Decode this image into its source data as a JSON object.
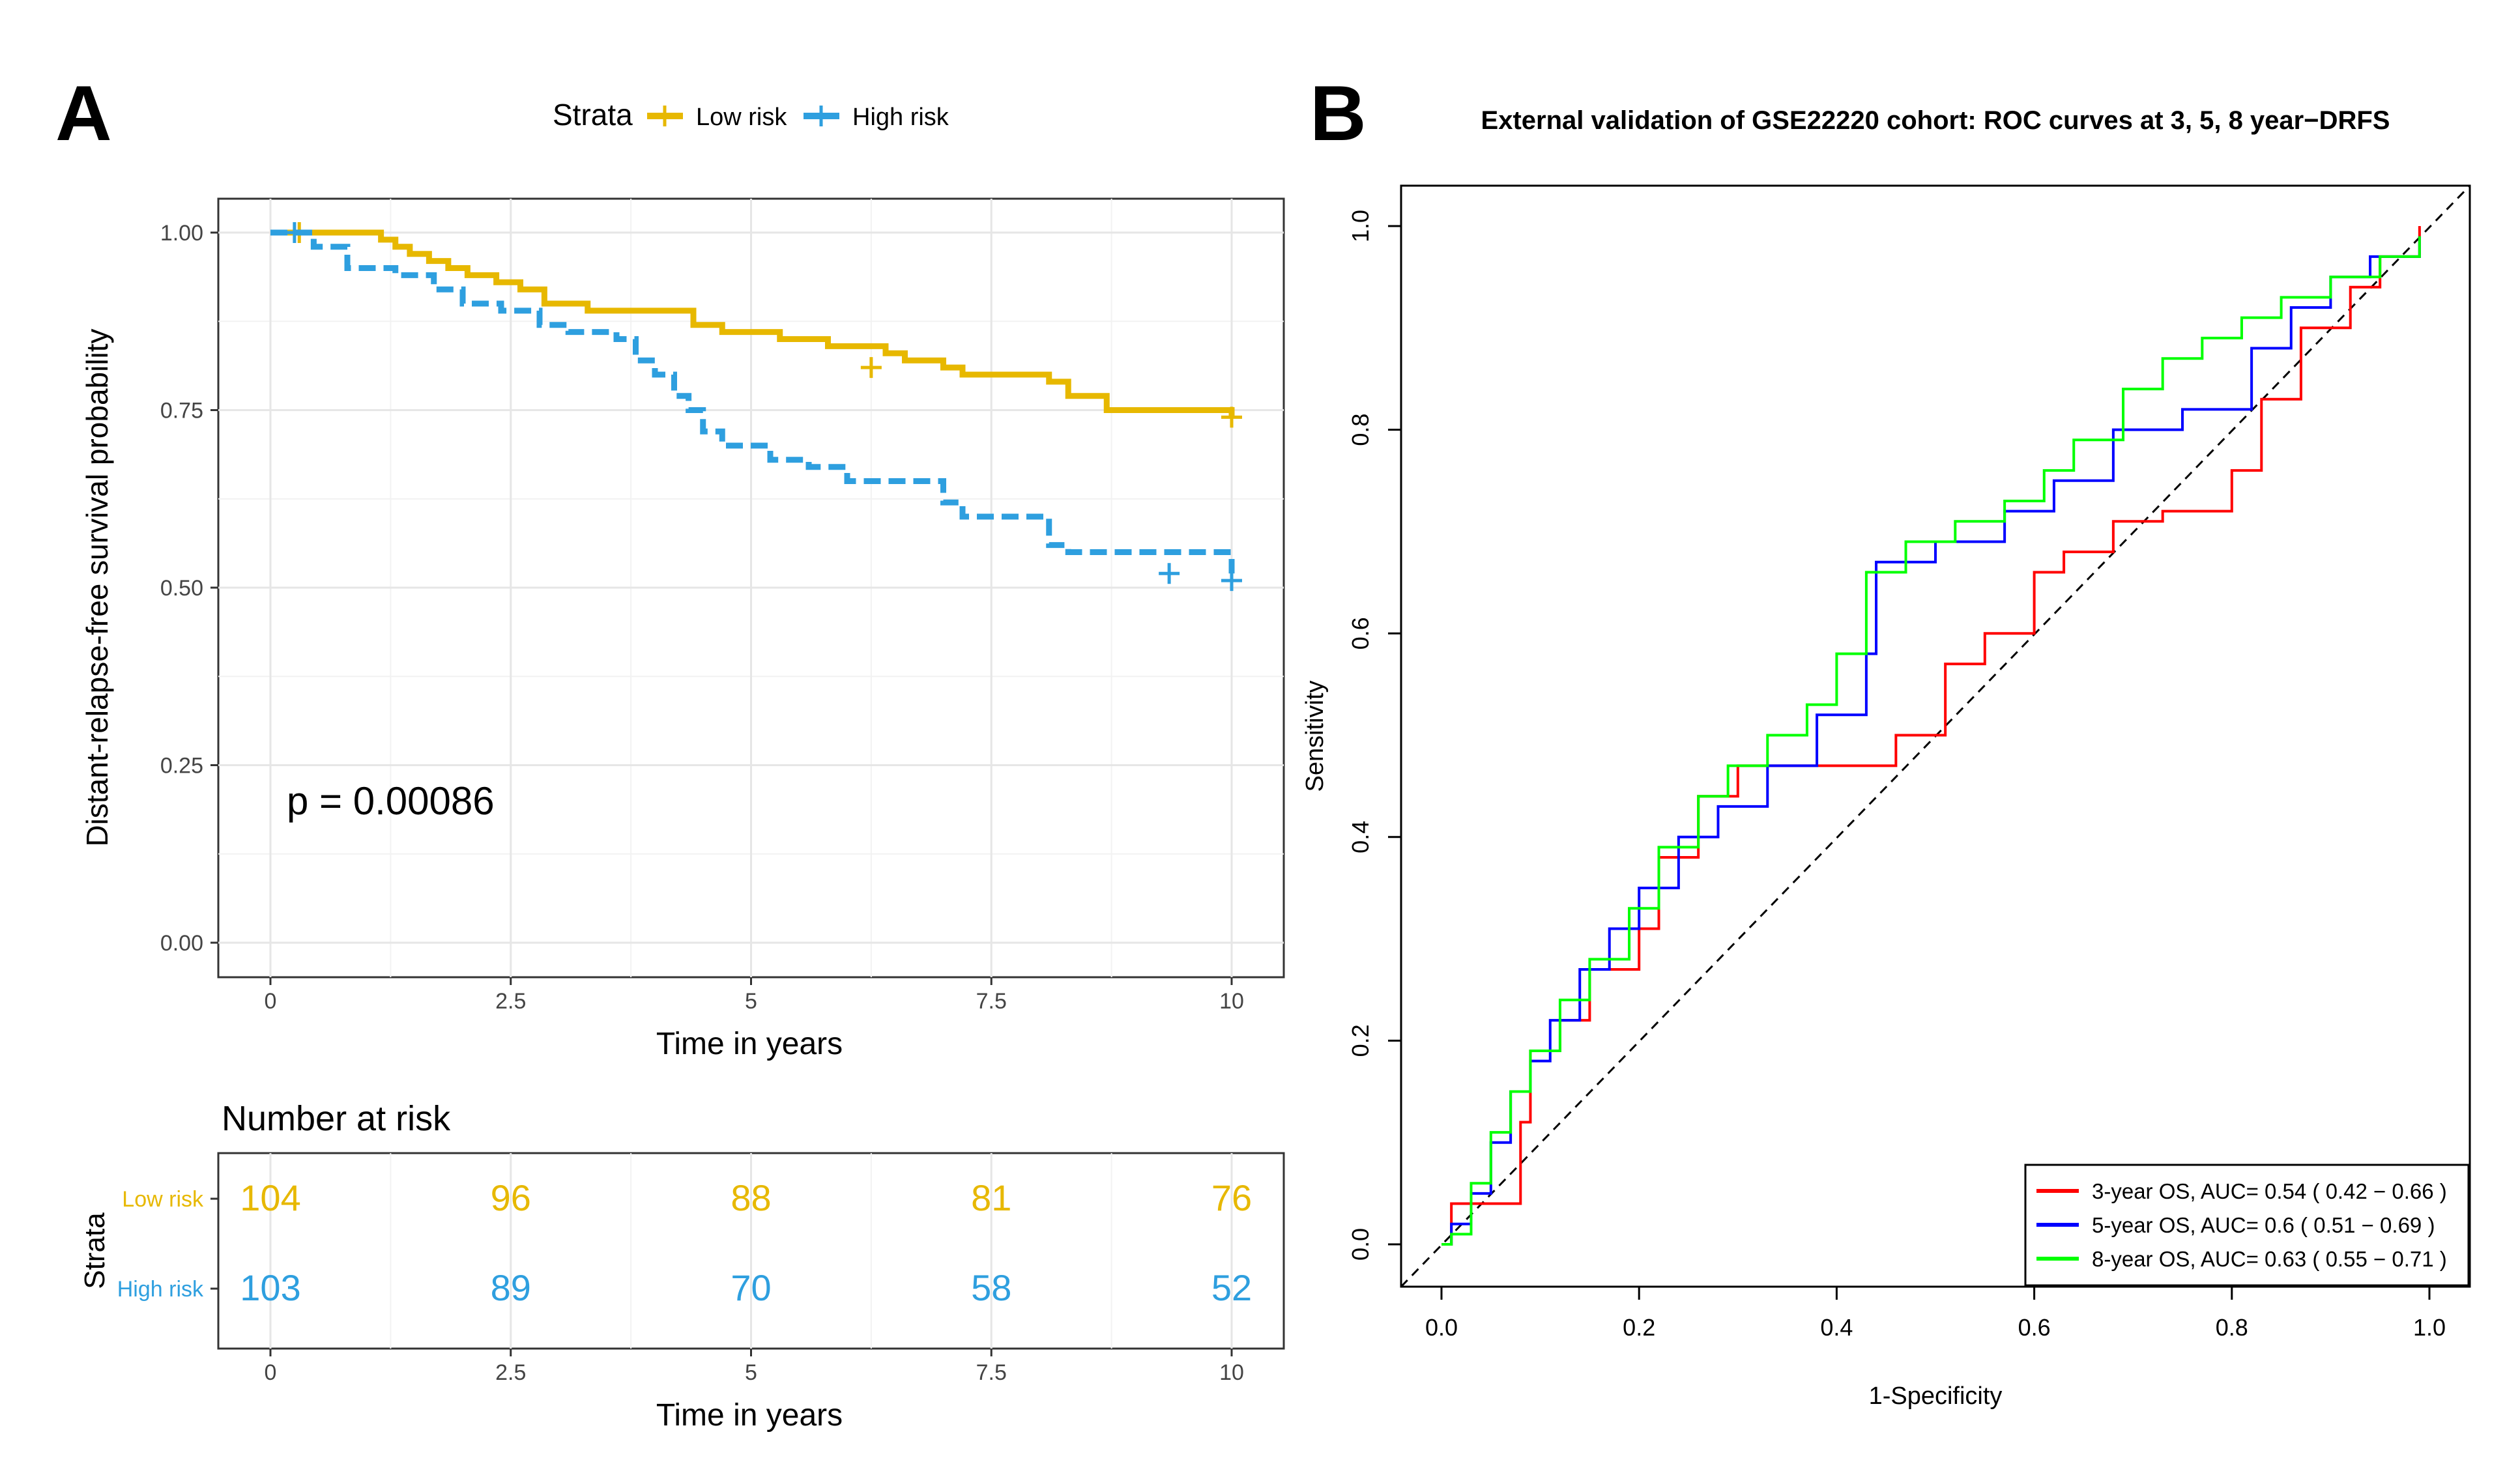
{
  "panel_a": {
    "letter": "A",
    "legend": {
      "title": "Strata",
      "entries": [
        "Low risk",
        "High risk"
      ]
    },
    "p_value": "p = 0.00086",
    "number_at_risk_title": "Number at risk",
    "risk_table_ylabel": "Strata",
    "risk_table_xlabel": "Time in years"
  },
  "panel_b": {
    "letter": "B"
  },
  "chart_data": [
    {
      "type": "line",
      "subtype": "kaplan-meier",
      "title": "",
      "xlabel": "Time in years",
      "ylabel": "Distant-relapse-free survival probability",
      "xlim": [
        0,
        10
      ],
      "ylim": [
        0,
        1
      ],
      "xticks": [
        "0",
        "2.5",
        "5",
        "7.5",
        "10"
      ],
      "yticks": [
        "0.00",
        "0.25",
        "0.50",
        "0.75",
        "1.00"
      ],
      "series": [
        {
          "name": "Low risk",
          "color": "#E7B800",
          "dash": "solid",
          "x": [
            0,
            1.15,
            1.3,
            1.45,
            1.65,
            1.85,
            2.05,
            2.35,
            2.6,
            2.85,
            3.3,
            4.4,
            4.7,
            5.3,
            5.8,
            6.4,
            6.6,
            7.0,
            7.2,
            8.1,
            8.3,
            8.7,
            10
          ],
          "y": [
            1.0,
            0.99,
            0.98,
            0.97,
            0.96,
            0.95,
            0.94,
            0.93,
            0.92,
            0.9,
            0.89,
            0.87,
            0.86,
            0.85,
            0.84,
            0.83,
            0.82,
            0.81,
            0.8,
            0.79,
            0.77,
            0.75,
            0.74
          ],
          "censor_x": [
            0.3,
            6.25,
            10
          ],
          "censor_y": [
            1.0,
            0.81,
            0.74
          ]
        },
        {
          "name": "High risk",
          "color": "#2E9FDF",
          "dash": "dashed",
          "x": [
            0,
            0.45,
            0.8,
            1.3,
            1.7,
            2.0,
            2.4,
            2.8,
            3.1,
            3.6,
            3.8,
            4.0,
            4.2,
            4.35,
            4.5,
            4.7,
            5.2,
            5.6,
            6.0,
            7.0,
            7.2,
            8.1,
            8.3,
            10
          ],
          "y": [
            1.0,
            0.98,
            0.95,
            0.94,
            0.92,
            0.9,
            0.89,
            0.87,
            0.86,
            0.85,
            0.82,
            0.8,
            0.77,
            0.75,
            0.72,
            0.7,
            0.68,
            0.67,
            0.65,
            0.62,
            0.6,
            0.56,
            0.55,
            0.52
          ],
          "censor_x": [
            0.25,
            9.35,
            10
          ],
          "censor_y": [
            1.0,
            0.52,
            0.51
          ]
        }
      ]
    },
    {
      "type": "table",
      "title": "Number at risk",
      "columns": [
        "0",
        "2.5",
        "5",
        "7.5",
        "10"
      ],
      "rows": [
        {
          "label": "Low risk",
          "color": "#E7B800",
          "values": [
            "104",
            "96",
            "88",
            "81",
            "76"
          ]
        },
        {
          "label": "High risk",
          "color": "#2E9FDF",
          "values": [
            "103",
            "89",
            "70",
            "58",
            "52"
          ]
        }
      ]
    },
    {
      "type": "line",
      "subtype": "roc",
      "title": "External validation of GSE22220 cohort: ROC curves at 3, 5, 8 year−DRFS",
      "xlabel": "1-Specificity",
      "ylabel": "Sensitivity",
      "xlim": [
        0,
        1
      ],
      "ylim": [
        0,
        1
      ],
      "xticks": [
        "0.0",
        "0.2",
        "0.4",
        "0.6",
        "0.8",
        "1.0"
      ],
      "yticks": [
        "0.0",
        "0.2",
        "0.4",
        "0.6",
        "0.8",
        "1.0"
      ],
      "series": [
        {
          "name": "3-year OS, AUC= 0.54 ( 0.42 − 0.66 )",
          "color": "#FF0000",
          "x": [
            0,
            0.01,
            0.01,
            0.08,
            0.08,
            0.09,
            0.12,
            0.15,
            0.2,
            0.22,
            0.26,
            0.3,
            0.36,
            0.46,
            0.51,
            0.55,
            0.6,
            0.63,
            0.68,
            0.73,
            0.8,
            0.83,
            0.87,
            0.92,
            0.95,
            0.99
          ],
          "y": [
            0,
            0.02,
            0.04,
            0.04,
            0.12,
            0.19,
            0.22,
            0.27,
            0.31,
            0.38,
            0.44,
            0.47,
            0.47,
            0.5,
            0.57,
            0.6,
            0.66,
            0.68,
            0.71,
            0.72,
            0.76,
            0.83,
            0.9,
            0.94,
            0.97,
            1.0
          ]
        },
        {
          "name": "5-year OS, AUC= 0.6 ( 0.51 − 0.69 )",
          "color": "#0000FF",
          "x": [
            0,
            0.01,
            0.03,
            0.05,
            0.07,
            0.09,
            0.11,
            0.14,
            0.17,
            0.2,
            0.24,
            0.28,
            0.33,
            0.38,
            0.43,
            0.44,
            0.5,
            0.57,
            0.62,
            0.68,
            0.75,
            0.82,
            0.86,
            0.9,
            0.94,
            0.99
          ],
          "y": [
            0,
            0.02,
            0.05,
            0.1,
            0.15,
            0.18,
            0.22,
            0.27,
            0.31,
            0.35,
            0.4,
            0.43,
            0.47,
            0.52,
            0.58,
            0.67,
            0.69,
            0.72,
            0.75,
            0.8,
            0.82,
            0.88,
            0.92,
            0.95,
            0.97,
            0.99
          ]
        },
        {
          "name": "8-year OS, AUC= 0.63 ( 0.55 − 0.71 )",
          "color": "#00FF00",
          "x": [
            0,
            0.01,
            0.03,
            0.05,
            0.07,
            0.09,
            0.12,
            0.15,
            0.19,
            0.22,
            0.26,
            0.29,
            0.33,
            0.37,
            0.4,
            0.43,
            0.47,
            0.52,
            0.57,
            0.61,
            0.64,
            0.69,
            0.73,
            0.77,
            0.81,
            0.85,
            0.9,
            0.95,
            0.99
          ],
          "y": [
            0,
            0.01,
            0.06,
            0.11,
            0.15,
            0.19,
            0.24,
            0.28,
            0.33,
            0.39,
            0.44,
            0.47,
            0.5,
            0.53,
            0.58,
            0.66,
            0.69,
            0.71,
            0.73,
            0.76,
            0.79,
            0.84,
            0.87,
            0.89,
            0.91,
            0.93,
            0.95,
            0.97,
            0.99
          ]
        }
      ]
    }
  ]
}
